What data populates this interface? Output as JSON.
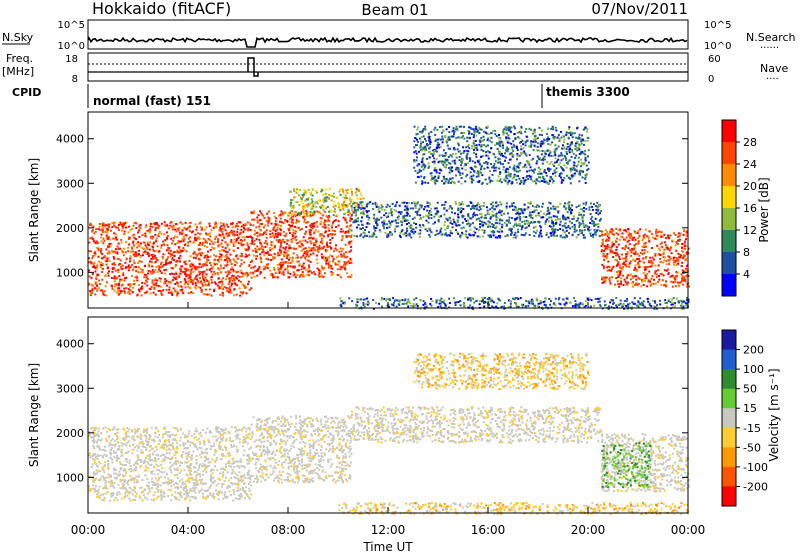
{
  "header": {
    "station": "Hokkaido (fitACF)",
    "beam": "Beam 01",
    "date": "07/Nov/2011"
  },
  "nsky_panel": {
    "label": "N.Sky",
    "left_ticks": [
      "10^5",
      "10^0"
    ],
    "right_ticks": [
      "10^5",
      "10^0"
    ],
    "right_label": "N.Search",
    "right_legend_line": "......"
  },
  "freq_panel": {
    "label_line1": "Freq.",
    "label_line2": "[MHz]",
    "left_ticks": [
      "18",
      "8"
    ],
    "right_ticks": [
      "60",
      "0"
    ],
    "right_label": "Nave",
    "right_legend_line": "...."
  },
  "cpid_panel": {
    "label": "CPID",
    "mode1": "normal (fast) 151",
    "mode2": "themis 3300"
  },
  "x_axis": {
    "title": "Time UT",
    "ticks": [
      "00:00",
      "04:00",
      "08:00",
      "12:00",
      "16:00",
      "20:00",
      "00:00"
    ]
  },
  "power_colorbar": {
    "title": "Power [dB]",
    "ticks": [
      "28",
      "24",
      "20",
      "16",
      "12",
      "8",
      "4"
    ],
    "colors": [
      "#ff0000",
      "#ff4500",
      "#ff8c00",
      "#ffd700",
      "#8fbc3f",
      "#2e8b57",
      "#1e4fa0",
      "#0000ff"
    ]
  },
  "velocity_colorbar": {
    "title": "Velocity [m s⁻¹]",
    "ticks": [
      "200",
      "100",
      "50",
      "15",
      "-15",
      "-50",
      "-100",
      "-200"
    ],
    "colors": [
      "#1a1aa0",
      "#1e5fd0",
      "#2e8b2e",
      "#66cc33",
      "#c8c8c0",
      "#ffcc33",
      "#ff9900",
      "#ff5500",
      "#ff0000"
    ]
  },
  "chart_data": [
    {
      "type": "heatmap",
      "ylabel": "Slant Range [km]",
      "xlabel": "",
      "y_ticks": [
        "1000",
        "2000",
        "3000",
        "4000"
      ],
      "xlim_hours": [
        0,
        24
      ],
      "ylim_km": [
        200,
        4600
      ],
      "regions": [
        {
          "t0": 0.0,
          "t1": 6.5,
          "r0": 500,
          "r1": 2150,
          "level": "high"
        },
        {
          "t0": 6.5,
          "t1": 10.5,
          "r0": 900,
          "r1": 2400,
          "level": "high"
        },
        {
          "t0": 8.0,
          "t1": 11.0,
          "r0": 2300,
          "r1": 2900,
          "level": "mid"
        },
        {
          "t0": 10.5,
          "t1": 20.5,
          "r0": 1800,
          "r1": 2600,
          "level": "low"
        },
        {
          "t0": 13.0,
          "t1": 20.0,
          "r0": 3000,
          "r1": 4300,
          "level": "low"
        },
        {
          "t0": 20.5,
          "t1": 24.0,
          "r0": 700,
          "r1": 2000,
          "level": "high"
        },
        {
          "t0": 10.0,
          "t1": 24.0,
          "r0": 200,
          "r1": 450,
          "level": "low"
        }
      ]
    },
    {
      "type": "heatmap",
      "ylabel": "Slant Range [km]",
      "xlabel": "Time UT",
      "y_ticks": [
        "1000",
        "2000",
        "3000",
        "4000"
      ],
      "xlim_hours": [
        0,
        24
      ],
      "ylim_km": [
        200,
        4600
      ],
      "regions": [
        {
          "t0": 0.0,
          "t1": 6.5,
          "r0": 500,
          "r1": 2150,
          "level": "zero"
        },
        {
          "t0": 6.5,
          "t1": 10.5,
          "r0": 900,
          "r1": 2400,
          "level": "zero"
        },
        {
          "t0": 10.5,
          "t1": 20.5,
          "r0": 1800,
          "r1": 2600,
          "level": "zero"
        },
        {
          "t0": 13.0,
          "t1": 20.0,
          "r0": 3000,
          "r1": 3800,
          "level": "neg"
        },
        {
          "t0": 20.5,
          "t1": 24.0,
          "r0": 700,
          "r1": 2000,
          "level": "zero"
        },
        {
          "t0": 20.5,
          "t1": 22.5,
          "r0": 800,
          "r1": 1800,
          "level": "pos"
        },
        {
          "t0": 10.0,
          "t1": 24.0,
          "r0": 200,
          "r1": 450,
          "level": "neg"
        }
      ]
    }
  ]
}
